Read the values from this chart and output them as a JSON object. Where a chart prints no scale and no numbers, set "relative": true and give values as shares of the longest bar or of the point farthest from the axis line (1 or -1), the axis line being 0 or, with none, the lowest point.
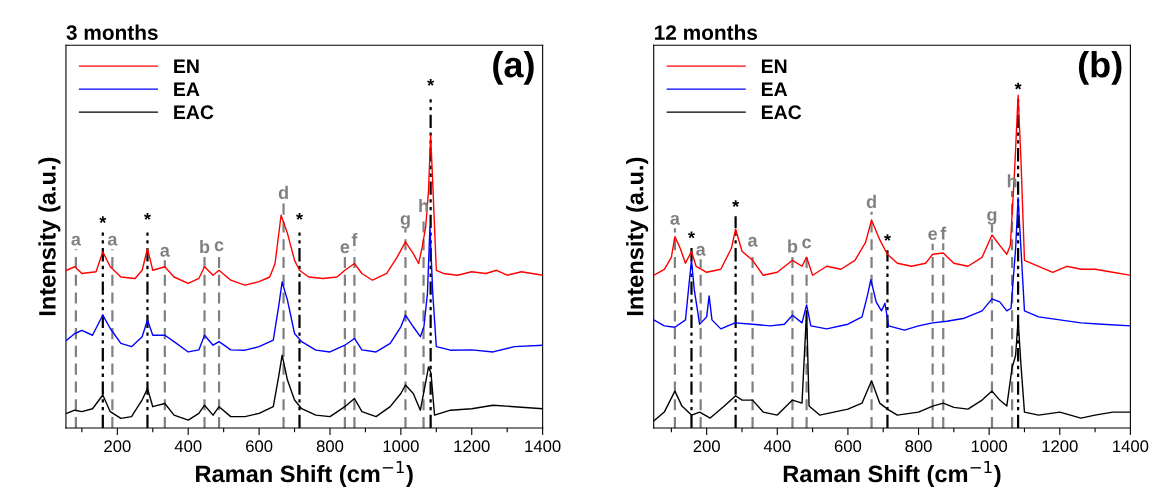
{
  "chart_data": [
    {
      "type": "line",
      "title": "3 months",
      "xlabel": "Raman Shift (cm$^{−1}$)",
      "ylabel": "Intensity (a.u.)",
      "relative": true,
      "legend": "top left",
      "grid": false,
      "xlim": [
        55,
        1400
      ],
      "xticks": [
        {
          "value": 100,
          "label": null
        },
        200,
        {
          "value": 300,
          "label": null
        },
        400,
        {
          "value": 500,
          "label": null
        },
        600,
        {
          "value": 700,
          "label": null
        },
        800,
        {
          "value": 900,
          "label": null
        },
        1000,
        {
          "value": 1100,
          "label": null
        },
        1200,
        {
          "value": 1300,
          "label": null
        },
        1400
      ],
      "series": [
        {
          "name": "EN",
          "color": "#ff0000",
          "x": [
            57,
            80,
            100,
            140,
            159,
            180,
            210,
            250,
            270,
            285,
            300,
            334,
            360,
            400,
            430,
            446,
            470,
            487,
            520,
            560,
            600,
            630,
            645,
            662,
            680,
            700,
            714,
            740,
            780,
            820,
            842,
            869,
            890,
            920,
            960,
            990,
            1013,
            1035,
            1050,
            1060,
            1070,
            1078,
            1084,
            1090,
            1100,
            1120,
            1160,
            1200,
            1240,
            1270,
            1300,
            1340,
            1370,
            1400
          ],
          "values": [
            0.539,
            0.551,
            0.528,
            0.534,
            0.602,
            0.551,
            0.516,
            0.511,
            0.539,
            0.613,
            0.539,
            0.551,
            0.516,
            0.494,
            0.511,
            0.551,
            0.522,
            0.539,
            0.505,
            0.488,
            0.5,
            0.516,
            0.562,
            0.727,
            0.665,
            0.573,
            0.539,
            0.516,
            0.511,
            0.516,
            0.539,
            0.562,
            0.528,
            0.505,
            0.528,
            0.585,
            0.636,
            0.596,
            0.562,
            0.617,
            0.687,
            0.812,
            1.0,
            0.835,
            0.539,
            0.528,
            0.522,
            0.534,
            0.528,
            0.539,
            0.522,
            0.534,
            0.528,
            0.522
          ]
        },
        {
          "name": "EA",
          "color": "#0000ff",
          "x": [
            57,
            80,
            100,
            130,
            159,
            180,
            210,
            240,
            270,
            285,
            300,
            334,
            360,
            400,
            430,
            446,
            470,
            487,
            520,
            560,
            600,
            640,
            655,
            665,
            680,
            700,
            720,
            760,
            800,
            842,
            869,
            890,
            930,
            970,
            1000,
            1013,
            1035,
            1055,
            1065,
            1075,
            1082,
            1090,
            1100,
            1140,
            1200,
            1260,
            1320,
            1400
          ],
          "values": [
            0.3,
            0.323,
            0.334,
            0.317,
            0.386,
            0.34,
            0.289,
            0.278,
            0.312,
            0.369,
            0.317,
            0.317,
            0.295,
            0.26,
            0.267,
            0.317,
            0.283,
            0.295,
            0.267,
            0.266,
            0.278,
            0.3,
            0.414,
            0.499,
            0.437,
            0.323,
            0.295,
            0.266,
            0.26,
            0.283,
            0.306,
            0.267,
            0.26,
            0.289,
            0.346,
            0.386,
            0.346,
            0.312,
            0.346,
            0.46,
            0.687,
            0.46,
            0.278,
            0.266,
            0.267,
            0.26,
            0.278,
            0.283
          ]
        },
        {
          "name": "EAC",
          "color": "#000000",
          "x": [
            57,
            80,
            100,
            130,
            159,
            180,
            210,
            240,
            270,
            285,
            300,
            334,
            360,
            400,
            430,
            446,
            470,
            487,
            520,
            560,
            600,
            640,
            655,
            665,
            680,
            700,
            720,
            760,
            800,
            842,
            869,
            890,
            930,
            970,
            1000,
            1013,
            1035,
            1055,
            1068,
            1078,
            1085,
            1095,
            1140,
            1200,
            1260,
            1320,
            1400
          ],
          "values": [
            0.05,
            0.061,
            0.056,
            0.066,
            0.113,
            0.056,
            0.033,
            0.039,
            0.096,
            0.135,
            0.073,
            0.084,
            0.044,
            0.027,
            0.05,
            0.078,
            0.044,
            0.073,
            0.039,
            0.039,
            0.05,
            0.073,
            0.175,
            0.249,
            0.164,
            0.096,
            0.066,
            0.044,
            0.039,
            0.073,
            0.101,
            0.056,
            0.039,
            0.073,
            0.118,
            0.147,
            0.118,
            0.061,
            0.143,
            0.209,
            0.187,
            0.044,
            0.061,
            0.066,
            0.078,
            0.073,
            0.066
          ]
        }
      ],
      "ref_lines": [
        {
          "axis": "x",
          "value": 83,
          "color": "#808080",
          "line_style": "dashed"
        },
        {
          "axis": "x",
          "value": 159,
          "color": "#000000",
          "line_style": "dashdot"
        },
        {
          "axis": "x",
          "value": 186,
          "color": "#808080",
          "line_style": "dashed"
        },
        {
          "axis": "x",
          "value": 285,
          "color": "#000000",
          "line_style": "dashdot"
        },
        {
          "axis": "x",
          "value": 334,
          "color": "#808080",
          "line_style": "dashed"
        },
        {
          "axis": "x",
          "value": 446,
          "color": "#808080",
          "line_style": "dashed"
        },
        {
          "axis": "x",
          "value": 487,
          "color": "#808080",
          "line_style": "dashed"
        },
        {
          "axis": "x",
          "value": 669,
          "color": "#808080",
          "line_style": "dashed"
        },
        {
          "axis": "x",
          "value": 714,
          "color": "#000000",
          "line_style": "dashdot"
        },
        {
          "axis": "x",
          "value": 842,
          "color": "#808080",
          "line_style": "dashed"
        },
        {
          "axis": "x",
          "value": 869,
          "color": "#808080",
          "line_style": "dashed"
        },
        {
          "axis": "x",
          "value": 1013,
          "color": "#808080",
          "line_style": "dashed"
        },
        {
          "axis": "x",
          "value": 1064,
          "color": "#808080",
          "line_style": "dashed"
        },
        {
          "axis": "x",
          "value": 1084,
          "color": "#000000",
          "line_style": "dashdot"
        }
      ],
      "annotations": [
        {
          "text": "a",
          "x": 83,
          "y": 0.611
        },
        {
          "text": "*",
          "x": 159,
          "y": 0.668
        },
        {
          "text": "a",
          "x": 186,
          "y": 0.611
        },
        {
          "text": "*",
          "x": 285,
          "y": 0.679
        },
        {
          "text": "a",
          "x": 334,
          "y": 0.573
        },
        {
          "text": "b",
          "x": 446,
          "y": 0.585
        },
        {
          "text": "c",
          "x": 487,
          "y": 0.592
        },
        {
          "text": "d",
          "x": 669,
          "y": 0.77
        },
        {
          "text": "*",
          "x": 714,
          "y": 0.679
        },
        {
          "text": "e",
          "x": 842,
          "y": 0.585
        },
        {
          "text": "f",
          "x": 869,
          "y": 0.609
        },
        {
          "text": "g",
          "x": 1013,
          "y": 0.681
        },
        {
          "text": "h",
          "x": 1064,
          "y": 0.725
        },
        {
          "text": "*",
          "x": 1084,
          "y": 1.137
        },
        "(a)"
      ]
    },
    {
      "type": "line",
      "title": "12 months",
      "xlabel": "Raman Shift (cm$^{−1}$)",
      "ylabel": "Intensity (a.u.)",
      "relative": true,
      "legend": "top left",
      "grid": false,
      "xlim": [
        50,
        1400
      ],
      "xticks": [
        {
          "value": 100,
          "label": null
        },
        200,
        {
          "value": 300,
          "label": null
        },
        400,
        {
          "value": 500,
          "label": null
        },
        600,
        {
          "value": 700,
          "label": null
        },
        800,
        {
          "value": 900,
          "label": null
        },
        1000,
        {
          "value": 1100,
          "label": null
        },
        1200,
        {
          "value": 1300,
          "label": null
        },
        1400
      ],
      "series": [
        {
          "name": "EN",
          "color": "#ff0000",
          "x": [
            50,
            80,
            100,
            110,
            125,
            140,
            157,
            170,
            200,
            240,
            270,
            282,
            300,
            330,
            360,
            400,
            443,
            470,
            483,
            500,
            540,
            580,
            620,
            650,
            667,
            690,
            712,
            740,
            780,
            820,
            840,
            870,
            900,
            940,
            980,
            1008,
            1030,
            1050,
            1060,
            1072,
            1082,
            1090,
            1100,
            1140,
            1180,
            1220,
            1260,
            1300,
            1350,
            1400
          ],
          "values": [
            0.459,
            0.477,
            0.513,
            0.575,
            0.54,
            0.495,
            0.531,
            0.486,
            0.468,
            0.477,
            0.54,
            0.598,
            0.531,
            0.504,
            0.459,
            0.468,
            0.504,
            0.486,
            0.513,
            0.459,
            0.486,
            0.477,
            0.504,
            0.558,
            0.625,
            0.566,
            0.522,
            0.495,
            0.486,
            0.495,
            0.522,
            0.526,
            0.495,
            0.486,
            0.513,
            0.58,
            0.549,
            0.522,
            0.549,
            0.772,
            1.0,
            0.808,
            0.504,
            0.486,
            0.468,
            0.486,
            0.477,
            0.477,
            0.468,
            0.459
          ]
        },
        {
          "name": "EA",
          "color": "#0000ff",
          "x": [
            50,
            80,
            110,
            140,
            150,
            157,
            165,
            180,
            200,
            207,
            215,
            240,
            280,
            330,
            380,
            420,
            443,
            470,
            483,
            495,
            540,
            600,
            640,
            655,
            665,
            680,
            695,
            705,
            715,
            760,
            800,
            840,
            880,
            930,
            980,
            1008,
            1030,
            1050,
            1062,
            1075,
            1082,
            1090,
            1100,
            1140,
            1200,
            1260,
            1320,
            1400
          ],
          "values": [
            0.325,
            0.307,
            0.303,
            0.325,
            0.432,
            0.504,
            0.415,
            0.312,
            0.334,
            0.397,
            0.325,
            0.298,
            0.316,
            0.312,
            0.307,
            0.312,
            0.339,
            0.316,
            0.37,
            0.307,
            0.298,
            0.312,
            0.334,
            0.397,
            0.446,
            0.379,
            0.352,
            0.375,
            0.307,
            0.294,
            0.307,
            0.316,
            0.321,
            0.33,
            0.352,
            0.388,
            0.379,
            0.352,
            0.36,
            0.54,
            0.692,
            0.54,
            0.352,
            0.334,
            0.325,
            0.316,
            0.312,
            0.307
          ]
        },
        {
          "name": "EAC",
          "color": "#000000",
          "x": [
            50,
            80,
            110,
            130,
            157,
            180,
            210,
            250,
            282,
            300,
            330,
            360,
            400,
            443,
            470,
            483,
            490,
            520,
            560,
            600,
            640,
            667,
            690,
            712,
            740,
            800,
            840,
            870,
            900,
            940,
            980,
            1008,
            1030,
            1050,
            1065,
            1075,
            1082,
            1090,
            1100,
            1140,
            1200,
            1260,
            1300,
            1350,
            1400
          ],
          "values": [
            0.021,
            0.048,
            0.111,
            0.066,
            0.039,
            0.048,
            0.03,
            0.066,
            0.097,
            0.084,
            0.084,
            0.048,
            0.039,
            0.084,
            0.075,
            0.352,
            0.066,
            0.039,
            0.048,
            0.057,
            0.075,
            0.142,
            0.075,
            0.057,
            0.039,
            0.048,
            0.066,
            0.075,
            0.062,
            0.057,
            0.084,
            0.111,
            0.084,
            0.066,
            0.182,
            0.218,
            0.325,
            0.191,
            0.048,
            0.039,
            0.048,
            0.03,
            0.039,
            0.048,
            0.048
          ]
        }
      ],
      "ref_lines": [
        {
          "axis": "x",
          "value": 110,
          "color": "#808080",
          "line_style": "dashed"
        },
        {
          "axis": "x",
          "value": 157,
          "color": "#000000",
          "line_style": "dashdot"
        },
        {
          "axis": "x",
          "value": 183,
          "color": "#808080",
          "line_style": "dashed"
        },
        {
          "axis": "x",
          "value": 282,
          "color": "#000000",
          "line_style": "dashdot"
        },
        {
          "axis": "x",
          "value": 330,
          "color": "#808080",
          "line_style": "dashed"
        },
        {
          "axis": "x",
          "value": 443,
          "color": "#808080",
          "line_style": "dashed"
        },
        {
          "axis": "x",
          "value": 483,
          "color": "#808080",
          "line_style": "dashed"
        },
        {
          "axis": "x",
          "value": 667,
          "color": "#808080",
          "line_style": "dashed"
        },
        {
          "axis": "x",
          "value": 712,
          "color": "#000000",
          "line_style": "dashdot"
        },
        {
          "axis": "x",
          "value": 840,
          "color": "#808080",
          "line_style": "dashed"
        },
        {
          "axis": "x",
          "value": 870,
          "color": "#808080",
          "line_style": "dashed"
        },
        {
          "axis": "x",
          "value": 1008,
          "color": "#808080",
          "line_style": "dashed"
        },
        {
          "axis": "x",
          "value": 1065,
          "color": "#808080",
          "line_style": "dashed"
        },
        {
          "axis": "x",
          "value": 1082,
          "color": "#000000",
          "line_style": "dashdot"
        }
      ],
      "annotations": [
        {
          "text": "a",
          "x": 110,
          "y": 0.6
        },
        {
          "text": "*",
          "x": 157,
          "y": 0.542
        },
        {
          "text": "a",
          "x": 183,
          "y": 0.507
        },
        {
          "text": "*",
          "x": 282,
          "y": 0.636
        },
        {
          "text": "a",
          "x": 330,
          "y": 0.534
        },
        {
          "text": "b",
          "x": 443,
          "y": 0.516
        },
        {
          "text": "c",
          "x": 483,
          "y": 0.529
        },
        {
          "text": "d",
          "x": 667,
          "y": 0.65
        },
        {
          "text": "*",
          "x": 712,
          "y": 0.534
        },
        {
          "text": "e",
          "x": 840,
          "y": 0.554
        },
        {
          "text": "f",
          "x": 870,
          "y": 0.555
        },
        {
          "text": "g",
          "x": 1008,
          "y": 0.611
        },
        {
          "text": "h",
          "x": 1065,
          "y": 0.712
        },
        {
          "text": "*",
          "x": 1082,
          "y": 0.989
        },
        "(b)"
      ]
    }
  ]
}
